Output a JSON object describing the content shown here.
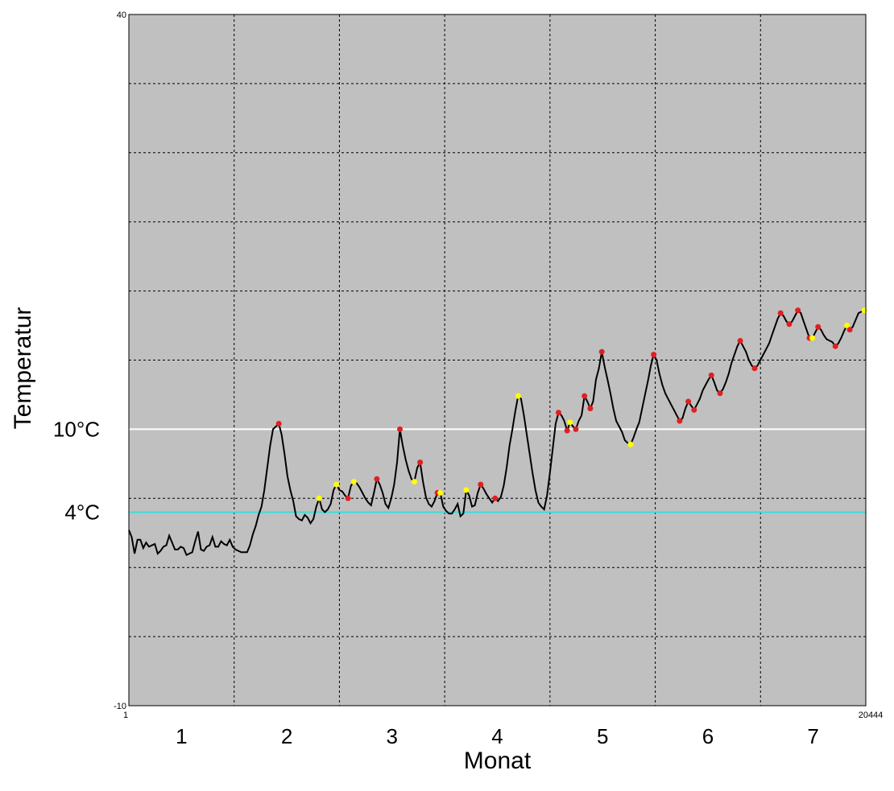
{
  "chart_data": {
    "type": "line",
    "title": "",
    "xlabel": "Monat",
    "ylabel": "Temperatur",
    "ylim": [
      -10,
      40
    ],
    "xlim": [
      1,
      20444
    ],
    "grid": true,
    "y_tick_labels": [
      {
        "value": 40,
        "label": "40"
      },
      {
        "value": -10,
        "label": "-10"
      }
    ],
    "x_tick_labels": [
      {
        "value": 1,
        "label": "1"
      },
      {
        "value": 20444,
        "label": "20444"
      }
    ],
    "month_labels": [
      "1",
      "2",
      "3",
      "4",
      "5",
      "6",
      "7"
    ],
    "reference_lines": [
      {
        "value": 10,
        "label": "10°C",
        "color": "#ffffff"
      },
      {
        "value": 4,
        "label": "4°C",
        "color": "#33e0e0"
      }
    ],
    "colors": {
      "plot_background": "#c0c0c0",
      "line": "#000000",
      "marker_red": "#e02020",
      "marker_yellow": "#ffff00"
    },
    "series": [
      {
        "values": [
          [
            1,
            2.7
          ],
          [
            80,
            2.2
          ],
          [
            160,
            1.0
          ],
          [
            240,
            2.0
          ],
          [
            320,
            2.0
          ],
          [
            400,
            1.4
          ],
          [
            480,
            1.8
          ],
          [
            560,
            1.5
          ],
          [
            640,
            1.6
          ],
          [
            720,
            1.7
          ],
          [
            800,
            1.0
          ],
          [
            880,
            1.2
          ],
          [
            960,
            1.5
          ],
          [
            1040,
            1.6
          ],
          [
            1120,
            2.3
          ],
          [
            1200,
            1.8
          ],
          [
            1280,
            1.3
          ],
          [
            1360,
            1.3
          ],
          [
            1440,
            1.5
          ],
          [
            1520,
            1.4
          ],
          [
            1600,
            0.9
          ],
          [
            1680,
            1.0
          ],
          [
            1760,
            1.1
          ],
          [
            1840,
            1.9
          ],
          [
            1920,
            2.6
          ],
          [
            2000,
            1.3
          ],
          [
            2080,
            1.2
          ],
          [
            2160,
            1.5
          ],
          [
            2240,
            1.6
          ],
          [
            2320,
            2.2
          ],
          [
            2400,
            1.5
          ],
          [
            2480,
            1.5
          ],
          [
            2560,
            1.9
          ],
          [
            2640,
            1.7
          ],
          [
            2720,
            1.6
          ],
          [
            2800,
            2.0
          ],
          [
            2880,
            1.5
          ],
          [
            2960,
            1.3
          ],
          [
            3040,
            1.2
          ],
          [
            3120,
            1.1
          ],
          [
            3200,
            1.1
          ],
          [
            3280,
            1.1
          ],
          [
            3360,
            1.6
          ],
          [
            3440,
            2.4
          ],
          [
            3520,
            3.0
          ],
          [
            3600,
            3.8
          ],
          [
            3680,
            4.4
          ],
          [
            3760,
            5.6
          ],
          [
            3840,
            7.2
          ],
          [
            3920,
            8.8
          ],
          [
            4000,
            10.0
          ],
          [
            4080,
            10.2
          ],
          [
            4160,
            10.4
          ],
          [
            4240,
            9.6
          ],
          [
            4320,
            8.2
          ],
          [
            4400,
            6.6
          ],
          [
            4480,
            5.6
          ],
          [
            4560,
            4.8
          ],
          [
            4640,
            3.7
          ],
          [
            4720,
            3.5
          ],
          [
            4800,
            3.4
          ],
          [
            4880,
            3.8
          ],
          [
            4960,
            3.6
          ],
          [
            5040,
            3.2
          ],
          [
            5120,
            3.5
          ],
          [
            5200,
            4.4
          ],
          [
            5280,
            5.0
          ],
          [
            5360,
            4.2
          ],
          [
            5440,
            4.0
          ],
          [
            5520,
            4.2
          ],
          [
            5600,
            4.6
          ],
          [
            5680,
            5.6
          ],
          [
            5760,
            6.0
          ],
          [
            5840,
            5.6
          ],
          [
            5920,
            5.5
          ],
          [
            6000,
            5.2
          ],
          [
            6080,
            5.0
          ],
          [
            6160,
            5.9
          ],
          [
            6240,
            6.2
          ],
          [
            6320,
            6.1
          ],
          [
            6400,
            5.8
          ],
          [
            6480,
            5.4
          ],
          [
            6560,
            5.0
          ],
          [
            6640,
            4.7
          ],
          [
            6720,
            4.5
          ],
          [
            6800,
            5.4
          ],
          [
            6880,
            6.4
          ],
          [
            6960,
            6.0
          ],
          [
            7040,
            5.4
          ],
          [
            7120,
            4.6
          ],
          [
            7200,
            4.3
          ],
          [
            7280,
            5.0
          ],
          [
            7360,
            6.0
          ],
          [
            7440,
            7.6
          ],
          [
            7520,
            10.0
          ],
          [
            7600,
            8.8
          ],
          [
            7680,
            7.8
          ],
          [
            7760,
            7.0
          ],
          [
            7840,
            6.4
          ],
          [
            7920,
            6.2
          ],
          [
            8000,
            7.2
          ],
          [
            8080,
            7.6
          ],
          [
            8160,
            6.2
          ],
          [
            8240,
            5.1
          ],
          [
            8320,
            4.6
          ],
          [
            8400,
            4.4
          ],
          [
            8480,
            4.8
          ],
          [
            8560,
            5.4
          ],
          [
            8640,
            5.4
          ],
          [
            8720,
            4.4
          ],
          [
            8800,
            4.1
          ],
          [
            8880,
            3.9
          ],
          [
            8960,
            3.9
          ],
          [
            9040,
            4.2
          ],
          [
            9120,
            4.6
          ],
          [
            9200,
            3.7
          ],
          [
            9280,
            3.9
          ],
          [
            9360,
            5.6
          ],
          [
            9440,
            5.2
          ],
          [
            9520,
            4.4
          ],
          [
            9600,
            4.5
          ],
          [
            9680,
            5.4
          ],
          [
            9760,
            6.0
          ],
          [
            9840,
            5.7
          ],
          [
            9920,
            5.3
          ],
          [
            10000,
            5.0
          ],
          [
            10080,
            4.7
          ],
          [
            10160,
            5.0
          ],
          [
            10240,
            4.8
          ],
          [
            10320,
            5.1
          ],
          [
            10400,
            5.9
          ],
          [
            10480,
            7.2
          ],
          [
            10560,
            8.8
          ],
          [
            10640,
            10.0
          ],
          [
            10720,
            11.3
          ],
          [
            10800,
            12.4
          ],
          [
            10880,
            12.2
          ],
          [
            10960,
            11.0
          ],
          [
            11040,
            9.6
          ],
          [
            11120,
            8.2
          ],
          [
            11200,
            6.8
          ],
          [
            11280,
            5.6
          ],
          [
            11360,
            4.7
          ],
          [
            11440,
            4.4
          ],
          [
            11520,
            4.2
          ],
          [
            11600,
            5.2
          ],
          [
            11680,
            6.8
          ],
          [
            11760,
            8.6
          ],
          [
            11840,
            10.4
          ],
          [
            11920,
            11.2
          ],
          [
            12000,
            11.0
          ],
          [
            12080,
            10.6
          ],
          [
            12160,
            9.9
          ],
          [
            12240,
            10.5
          ],
          [
            12320,
            10.2
          ],
          [
            12400,
            10.0
          ],
          [
            12480,
            10.6
          ],
          [
            12560,
            11.0
          ],
          [
            12640,
            12.4
          ],
          [
            12720,
            12.0
          ],
          [
            12800,
            11.5
          ],
          [
            12880,
            12.0
          ],
          [
            12960,
            13.6
          ],
          [
            13040,
            14.4
          ],
          [
            13120,
            15.6
          ],
          [
            13200,
            14.5
          ],
          [
            13280,
            13.6
          ],
          [
            13360,
            12.6
          ],
          [
            13440,
            11.5
          ],
          [
            13520,
            10.6
          ],
          [
            13600,
            10.2
          ],
          [
            13680,
            9.8
          ],
          [
            13760,
            9.2
          ],
          [
            13840,
            9.0
          ],
          [
            13920,
            8.9
          ],
          [
            14000,
            9.4
          ],
          [
            14080,
            10.0
          ],
          [
            14160,
            10.5
          ],
          [
            14240,
            11.5
          ],
          [
            14320,
            12.5
          ],
          [
            14400,
            13.5
          ],
          [
            14480,
            14.6
          ],
          [
            14560,
            15.4
          ],
          [
            14640,
            15.0
          ],
          [
            14720,
            14.0
          ],
          [
            14800,
            13.2
          ],
          [
            14880,
            12.6
          ],
          [
            14960,
            12.2
          ],
          [
            15040,
            11.8
          ],
          [
            15120,
            11.4
          ],
          [
            15200,
            11.0
          ],
          [
            15280,
            10.6
          ],
          [
            15360,
            10.8
          ],
          [
            15440,
            11.5
          ],
          [
            15520,
            12.0
          ],
          [
            15600,
            11.7
          ],
          [
            15680,
            11.4
          ],
          [
            15760,
            11.8
          ],
          [
            15840,
            12.2
          ],
          [
            15920,
            12.8
          ],
          [
            16000,
            13.2
          ],
          [
            16080,
            13.6
          ],
          [
            16160,
            13.9
          ],
          [
            16240,
            13.4
          ],
          [
            16320,
            12.8
          ],
          [
            16400,
            12.6
          ],
          [
            16480,
            12.9
          ],
          [
            16560,
            13.4
          ],
          [
            16640,
            14.0
          ],
          [
            16720,
            14.8
          ],
          [
            16800,
            15.4
          ],
          [
            16880,
            16.0
          ],
          [
            16960,
            16.4
          ],
          [
            17040,
            16.0
          ],
          [
            17120,
            15.6
          ],
          [
            17200,
            15.0
          ],
          [
            17280,
            14.6
          ],
          [
            17360,
            14.4
          ],
          [
            17440,
            14.6
          ],
          [
            17520,
            15.0
          ],
          [
            17600,
            15.4
          ],
          [
            17680,
            15.8
          ],
          [
            17760,
            16.2
          ],
          [
            17840,
            16.8
          ],
          [
            17920,
            17.4
          ],
          [
            18000,
            18.0
          ],
          [
            18080,
            18.4
          ],
          [
            18160,
            18.2
          ],
          [
            18240,
            17.8
          ],
          [
            18320,
            17.6
          ],
          [
            18400,
            17.8
          ],
          [
            18480,
            18.2
          ],
          [
            18560,
            18.6
          ],
          [
            18640,
            18.4
          ],
          [
            18720,
            17.8
          ],
          [
            18800,
            17.2
          ],
          [
            18880,
            16.6
          ],
          [
            18960,
            16.6
          ],
          [
            19040,
            17.0
          ],
          [
            19120,
            17.4
          ],
          [
            19200,
            17.2
          ],
          [
            19280,
            16.8
          ],
          [
            19360,
            16.5
          ],
          [
            19440,
            16.4
          ],
          [
            19520,
            16.3
          ],
          [
            19600,
            16.0
          ],
          [
            19680,
            16.2
          ],
          [
            19760,
            16.6
          ],
          [
            19840,
            17.1
          ],
          [
            19920,
            17.5
          ],
          [
            20000,
            17.2
          ],
          [
            20080,
            17.4
          ],
          [
            20160,
            17.9
          ],
          [
            20240,
            18.4
          ],
          [
            20320,
            18.5
          ],
          [
            20400,
            18.6
          ],
          [
            20444,
            18.6
          ]
        ]
      }
    ],
    "markers": {
      "description_red": "daily maximum points",
      "red": [],
      "yellow": []
    }
  }
}
